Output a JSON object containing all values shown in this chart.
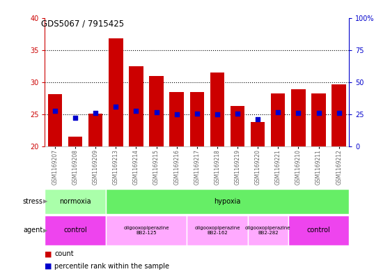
{
  "title": "GDS5067 / 7915425",
  "samples": [
    "GSM1169207",
    "GSM1169208",
    "GSM1169209",
    "GSM1169213",
    "GSM1169214",
    "GSM1169215",
    "GSM1169216",
    "GSM1169217",
    "GSM1169218",
    "GSM1169219",
    "GSM1169220",
    "GSM1169221",
    "GSM1169210",
    "GSM1169211",
    "GSM1169212"
  ],
  "counts": [
    28.1,
    21.5,
    25.1,
    36.8,
    32.5,
    31.0,
    28.5,
    28.5,
    31.5,
    26.3,
    23.8,
    28.3,
    28.9,
    28.3,
    29.7
  ],
  "percentiles": [
    25.5,
    24.5,
    25.2,
    26.2,
    25.5,
    25.3,
    25.0,
    25.1,
    25.0,
    25.1,
    24.3,
    25.3,
    25.2,
    25.2,
    25.2
  ],
  "bar_color": "#cc0000",
  "dot_color": "#0000cc",
  "y_min": 20,
  "y_max": 40,
  "y_ticks_left": [
    20,
    25,
    30,
    35,
    40
  ],
  "y_ticks_right": [
    0,
    25,
    50,
    75,
    100
  ],
  "dotted_lines": [
    25,
    30,
    35
  ],
  "stress_groups": [
    {
      "label": "normoxia",
      "start": 0,
      "end": 3,
      "color": "#aaffaa"
    },
    {
      "label": "hypoxia",
      "start": 3,
      "end": 15,
      "color": "#66ee66"
    }
  ],
  "agent_groups": [
    {
      "label": "control",
      "start": 0,
      "end": 3,
      "color": "#ee44ee",
      "small": false
    },
    {
      "label": "oligooxopiperazine\nBB2-125",
      "start": 3,
      "end": 7,
      "color": "#ffaaff",
      "small": true
    },
    {
      "label": "oligooxopiperazine\nBB2-162",
      "start": 7,
      "end": 10,
      "color": "#ffaaff",
      "small": true
    },
    {
      "label": "oligooxopiperazine\nBB2-282",
      "start": 10,
      "end": 12,
      "color": "#ffaaff",
      "small": true
    },
    {
      "label": "control",
      "start": 12,
      "end": 15,
      "color": "#ee44ee",
      "small": false
    }
  ],
  "xlabel_color": "#666666",
  "left_axis_color": "#cc0000",
  "right_axis_color": "#0000cc",
  "legend_bar_label": "count",
  "legend_dot_label": "percentile rank within the sample"
}
